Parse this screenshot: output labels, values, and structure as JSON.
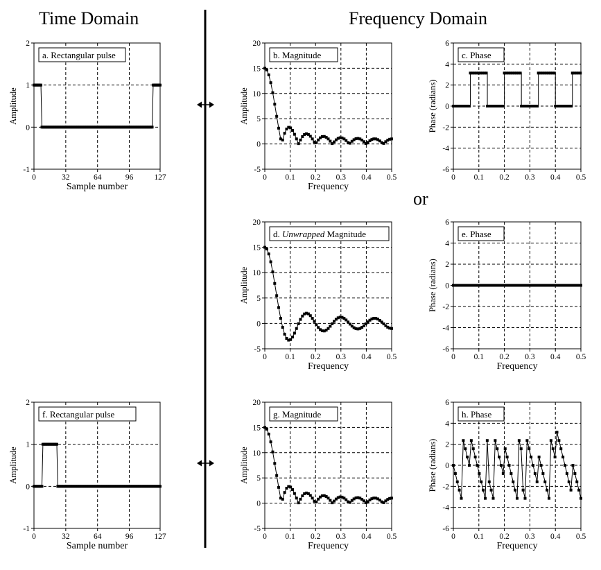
{
  "headers": {
    "time_domain": "Time Domain",
    "frequency_domain": "Frequency Domain",
    "or": "or"
  },
  "chart_data": [
    {
      "id": "a",
      "type": "line",
      "title": "a.  Rectangular pulse",
      "xlabel": "Sample number",
      "ylabel": "Amplitude",
      "xlim": [
        0,
        127
      ],
      "ylim": [
        -1,
        2
      ],
      "xticks": [
        0,
        32,
        64,
        96,
        127
      ],
      "yticks": [
        -1,
        0,
        1,
        2
      ],
      "xgrid": [
        32,
        64,
        96
      ],
      "ygrid": [
        0,
        1
      ],
      "series": [
        {
          "kind": "pulse",
          "x_step": 1,
          "segments": [
            [
              0,
              7,
              1
            ],
            [
              8,
              119,
              0
            ],
            [
              120,
              127,
              1
            ]
          ]
        }
      ]
    },
    {
      "id": "b",
      "type": "line",
      "title": "b.  Magnitude",
      "xlabel": "Frequency",
      "ylabel": "Amplitude",
      "xlim": [
        0,
        0.5
      ],
      "ylim": [
        -5,
        20
      ],
      "xticks": [
        0,
        0.1,
        0.2,
        0.3,
        0.4,
        0.5
      ],
      "yticks": [
        -5,
        0,
        5,
        10,
        15,
        20
      ],
      "xgrid": [
        0.1,
        0.2,
        0.3,
        0.4
      ],
      "ygrid": [
        0,
        5,
        10,
        15
      ],
      "series": [
        {
          "kind": "sinc",
          "N": 128,
          "L": 15,
          "abs": true,
          "x_step": 0.0078125
        }
      ]
    },
    {
      "id": "c",
      "type": "line",
      "title": "c.  Phase",
      "xlabel": "",
      "ylabel": "Phase (radians)",
      "xlim": [
        0,
        0.5
      ],
      "ylim": [
        -6,
        6
      ],
      "xticks": [
        0,
        0.1,
        0.2,
        0.3,
        0.4,
        0.5
      ],
      "yticks": [
        -6,
        -4,
        -2,
        0,
        2,
        4,
        6
      ],
      "xgrid": [
        0.1,
        0.2,
        0.3,
        0.4
      ],
      "ygrid": [
        -4,
        -2,
        0,
        2,
        4
      ],
      "series": [
        {
          "kind": "steps",
          "x_step": 0.0078125,
          "segments": [
            [
              0,
              0.0667,
              0
            ],
            [
              0.0667,
              0.1333,
              3.14
            ],
            [
              0.1333,
              0.2,
              0
            ],
            [
              0.2,
              0.2667,
              3.14
            ],
            [
              0.2667,
              0.3333,
              0
            ],
            [
              0.3333,
              0.4,
              3.14
            ],
            [
              0.4,
              0.4667,
              0
            ],
            [
              0.4667,
              0.5,
              3.14
            ]
          ]
        }
      ]
    },
    {
      "id": "d",
      "type": "line",
      "title_prefix": "d. ",
      "title_italic": "Unwrapped",
      "title_suffix": " Magnitude",
      "xlabel": "Frequency",
      "ylabel": "Amplitude",
      "xlim": [
        0,
        0.5
      ],
      "ylim": [
        -5,
        20
      ],
      "xticks": [
        0,
        0.1,
        0.2,
        0.3,
        0.4,
        0.5
      ],
      "yticks": [
        -5,
        0,
        5,
        10,
        15,
        20
      ],
      "xgrid": [
        0.1,
        0.2,
        0.3,
        0.4
      ],
      "ygrid": [
        0,
        5,
        10,
        15
      ],
      "series": [
        {
          "kind": "sinc",
          "N": 128,
          "L": 15,
          "abs": false,
          "x_step": 0.0078125
        }
      ]
    },
    {
      "id": "e",
      "type": "line",
      "title": "e.  Phase",
      "xlabel": "Frequency",
      "ylabel": "Phase (radians)",
      "xlim": [
        0,
        0.5
      ],
      "ylim": [
        -6,
        6
      ],
      "xticks": [
        0,
        0.1,
        0.2,
        0.3,
        0.4,
        0.5
      ],
      "yticks": [
        -6,
        -4,
        -2,
        0,
        2,
        4,
        6
      ],
      "xgrid": [
        0.1,
        0.2,
        0.3,
        0.4
      ],
      "ygrid": [
        -4,
        -2,
        0,
        2,
        4
      ],
      "series": [
        {
          "kind": "steps",
          "x_step": 0.0078125,
          "segments": [
            [
              0,
              0.5,
              0
            ]
          ]
        }
      ]
    },
    {
      "id": "f",
      "type": "line",
      "title": "f.  Rectangular pulse",
      "xlabel": "Sample number",
      "ylabel": "Amplitude",
      "xlim": [
        0,
        127
      ],
      "ylim": [
        -1,
        2
      ],
      "xticks": [
        0,
        32,
        64,
        96,
        127
      ],
      "yticks": [
        -1,
        0,
        1,
        2
      ],
      "xgrid": [
        32,
        64,
        96
      ],
      "ygrid": [
        0,
        1
      ],
      "series": [
        {
          "kind": "pulse",
          "x_step": 1,
          "segments": [
            [
              0,
              8,
              0
            ],
            [
              9,
              23,
              1
            ],
            [
              24,
              127,
              0
            ]
          ]
        }
      ]
    },
    {
      "id": "g",
      "type": "line",
      "title": "g.  Magnitude",
      "xlabel": "Frequency",
      "ylabel": "Amplitude",
      "xlim": [
        0,
        0.5
      ],
      "ylim": [
        -5,
        20
      ],
      "xticks": [
        0,
        0.1,
        0.2,
        0.3,
        0.4,
        0.5
      ],
      "yticks": [
        -5,
        0,
        5,
        10,
        15,
        20
      ],
      "xgrid": [
        0.1,
        0.2,
        0.3,
        0.4
      ],
      "ygrid": [
        0,
        5,
        10,
        15
      ],
      "series": [
        {
          "kind": "sinc",
          "N": 128,
          "L": 15,
          "abs": true,
          "x_step": 0.0078125
        }
      ]
    },
    {
      "id": "h",
      "type": "line",
      "title": "h.  Phase",
      "xlabel": "Frequency",
      "ylabel": "Phase (radians)",
      "xlim": [
        0,
        0.5
      ],
      "ylim": [
        -6,
        6
      ],
      "xticks": [
        0,
        0.1,
        0.2,
        0.3,
        0.4,
        0.5
      ],
      "yticks": [
        -6,
        -4,
        -2,
        0,
        2,
        4,
        6
      ],
      "xgrid": [
        0.1,
        0.2,
        0.3,
        0.4
      ],
      "ygrid": [
        -4,
        -2,
        0,
        2,
        4
      ],
      "series": [
        {
          "kind": "sinc_phase",
          "N": 128,
          "L": 15,
          "center": 16,
          "x_step": 0.0078125
        }
      ]
    }
  ]
}
